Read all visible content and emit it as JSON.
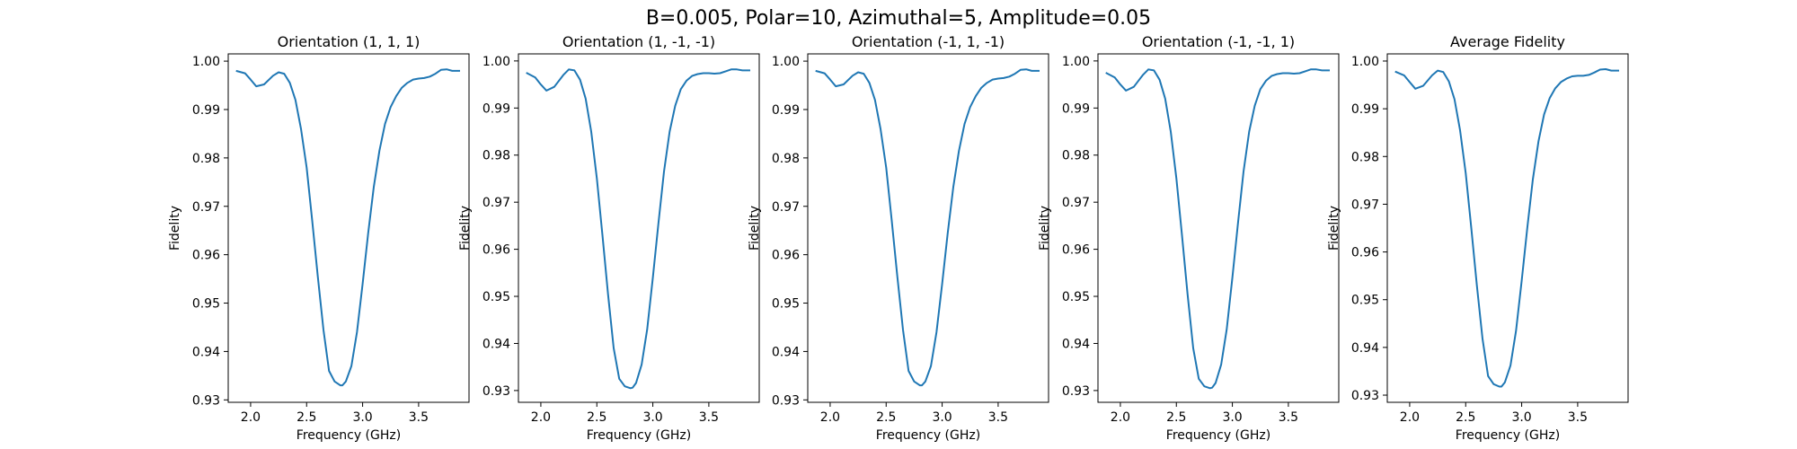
{
  "figure": {
    "suptitle": "B=0.005, Polar=10, Azimuthal=5, Amplitude=0.05"
  },
  "chart_data": [
    {
      "type": "line",
      "title": "Orientation (1, 1, 1)",
      "xlabel": "Frequency (GHz)",
      "ylabel": "Fidelity",
      "xlim": [
        1.8,
        3.95
      ],
      "ylim": [
        0.9295,
        1.0015
      ],
      "xticks": [
        "2.0",
        "2.5",
        "3.0",
        "3.5"
      ],
      "yticks": [
        "0.93",
        "0.94",
        "0.95",
        "0.96",
        "0.97",
        "0.98",
        "0.99",
        "1.00"
      ],
      "color": "#1f77b4",
      "series": [
        {
          "x": [
            1.87,
            1.95,
            2.0,
            2.05,
            2.12,
            2.2,
            2.25,
            2.3,
            2.35,
            2.4,
            2.45,
            2.5,
            2.55,
            2.6,
            2.65,
            2.7,
            2.75,
            2.8,
            2.82,
            2.85,
            2.9,
            2.95,
            3.0,
            3.05,
            3.1,
            3.15,
            3.2,
            3.25,
            3.3,
            3.35,
            3.4,
            3.45,
            3.5,
            3.55,
            3.6,
            3.65,
            3.7,
            3.75,
            3.8,
            3.85,
            3.87
          ],
          "y": [
            0.998,
            0.9975,
            0.9962,
            0.9948,
            0.9952,
            0.997,
            0.9977,
            0.9974,
            0.9955,
            0.992,
            0.986,
            0.978,
            0.967,
            0.9555,
            0.9445,
            0.936,
            0.9338,
            0.933,
            0.933,
            0.9338,
            0.937,
            0.944,
            0.954,
            0.9645,
            0.974,
            0.9815,
            0.987,
            0.9905,
            0.9928,
            0.9945,
            0.9955,
            0.9962,
            0.9964,
            0.9965,
            0.9968,
            0.9974,
            0.9982,
            0.9983,
            0.998,
            0.998,
            0.998
          ]
        }
      ]
    },
    {
      "type": "line",
      "title": "Orientation (1, -1, -1)",
      "xlabel": "Frequency (GHz)",
      "ylabel": "Fidelity",
      "xlim": [
        1.8,
        3.95
      ],
      "ylim": [
        0.9275,
        1.0015
      ],
      "xticks": [
        "2.0",
        "2.5",
        "3.0",
        "3.5"
      ],
      "yticks": [
        "0.93",
        "0.94",
        "0.95",
        "0.96",
        "0.97",
        "0.98",
        "0.99",
        "1.00"
      ],
      "color": "#1f77b4",
      "series": [
        {
          "x": [
            1.87,
            1.95,
            2.0,
            2.05,
            2.12,
            2.2,
            2.25,
            2.3,
            2.35,
            2.4,
            2.45,
            2.5,
            2.55,
            2.6,
            2.65,
            2.7,
            2.75,
            2.8,
            2.82,
            2.85,
            2.9,
            2.95,
            3.0,
            3.05,
            3.1,
            3.15,
            3.2,
            3.25,
            3.3,
            3.35,
            3.4,
            3.45,
            3.5,
            3.55,
            3.6,
            3.65,
            3.7,
            3.75,
            3.8,
            3.85,
            3.87
          ],
          "y": [
            0.9975,
            0.9965,
            0.995,
            0.9937,
            0.9945,
            0.997,
            0.9982,
            0.998,
            0.996,
            0.992,
            0.985,
            0.975,
            0.963,
            0.9505,
            0.939,
            0.9325,
            0.9309,
            0.9305,
            0.9306,
            0.9316,
            0.9355,
            0.943,
            0.954,
            0.9655,
            0.9765,
            0.985,
            0.9905,
            0.994,
            0.9958,
            0.9968,
            0.9972,
            0.9974,
            0.9974,
            0.9973,
            0.9974,
            0.9978,
            0.9982,
            0.9982,
            0.998,
            0.998,
            0.998
          ]
        }
      ]
    },
    {
      "type": "line",
      "title": "Orientation (-1, 1, -1)",
      "xlabel": "Frequency (GHz)",
      "ylabel": "Fidelity",
      "xlim": [
        1.8,
        3.95
      ],
      "ylim": [
        0.9295,
        1.0015
      ],
      "xticks": [
        "2.0",
        "2.5",
        "3.0",
        "3.5"
      ],
      "yticks": [
        "0.93",
        "0.94",
        "0.95",
        "0.96",
        "0.97",
        "0.98",
        "0.99",
        "1.00"
      ],
      "color": "#1f77b4",
      "series": [
        {
          "x": [
            1.87,
            1.95,
            2.0,
            2.05,
            2.12,
            2.2,
            2.25,
            2.3,
            2.35,
            2.4,
            2.45,
            2.5,
            2.55,
            2.6,
            2.65,
            2.7,
            2.75,
            2.8,
            2.82,
            2.85,
            2.9,
            2.95,
            3.0,
            3.05,
            3.1,
            3.15,
            3.2,
            3.25,
            3.3,
            3.35,
            3.4,
            3.45,
            3.5,
            3.55,
            3.6,
            3.65,
            3.7,
            3.75,
            3.8,
            3.85,
            3.87
          ],
          "y": [
            0.998,
            0.9975,
            0.9962,
            0.9948,
            0.9952,
            0.997,
            0.9977,
            0.9974,
            0.9955,
            0.992,
            0.986,
            0.978,
            0.967,
            0.9555,
            0.9445,
            0.936,
            0.9338,
            0.933,
            0.933,
            0.9338,
            0.937,
            0.944,
            0.954,
            0.9645,
            0.974,
            0.9815,
            0.987,
            0.9905,
            0.9928,
            0.9945,
            0.9955,
            0.9962,
            0.9964,
            0.9965,
            0.9968,
            0.9974,
            0.9982,
            0.9983,
            0.998,
            0.998,
            0.998
          ]
        }
      ]
    },
    {
      "type": "line",
      "title": "Orientation (-1, -1, 1)",
      "xlabel": "Frequency (GHz)",
      "ylabel": "Fidelity",
      "xlim": [
        1.8,
        3.95
      ],
      "ylim": [
        0.9275,
        1.0015
      ],
      "xticks": [
        "2.0",
        "2.5",
        "3.0",
        "3.5"
      ],
      "yticks": [
        "0.93",
        "0.94",
        "0.95",
        "0.96",
        "0.97",
        "0.98",
        "0.99",
        "1.00"
      ],
      "color": "#1f77b4",
      "series": [
        {
          "x": [
            1.87,
            1.95,
            2.0,
            2.05,
            2.12,
            2.2,
            2.25,
            2.3,
            2.35,
            2.4,
            2.45,
            2.5,
            2.55,
            2.6,
            2.65,
            2.7,
            2.75,
            2.8,
            2.82,
            2.85,
            2.9,
            2.95,
            3.0,
            3.05,
            3.1,
            3.15,
            3.2,
            3.25,
            3.3,
            3.35,
            3.4,
            3.45,
            3.5,
            3.55,
            3.6,
            3.65,
            3.7,
            3.75,
            3.8,
            3.85,
            3.87
          ],
          "y": [
            0.9975,
            0.9965,
            0.995,
            0.9937,
            0.9945,
            0.997,
            0.9982,
            0.998,
            0.996,
            0.992,
            0.985,
            0.975,
            0.963,
            0.9505,
            0.939,
            0.9325,
            0.9309,
            0.9305,
            0.9306,
            0.9316,
            0.9355,
            0.943,
            0.954,
            0.9655,
            0.9765,
            0.985,
            0.9905,
            0.994,
            0.9958,
            0.9968,
            0.9972,
            0.9974,
            0.9974,
            0.9973,
            0.9974,
            0.9978,
            0.9982,
            0.9982,
            0.998,
            0.998,
            0.998
          ]
        }
      ]
    },
    {
      "type": "line",
      "title": "Average Fidelity",
      "xlabel": "Frequency (GHz)",
      "ylabel": "Fidelity",
      "xlim": [
        1.8,
        3.95
      ],
      "ylim": [
        0.9285,
        1.0015
      ],
      "xticks": [
        "2.0",
        "2.5",
        "3.0",
        "3.5"
      ],
      "yticks": [
        "0.93",
        "0.94",
        "0.95",
        "0.96",
        "0.97",
        "0.98",
        "0.99",
        "1.00"
      ],
      "color": "#1f77b4",
      "series": [
        {
          "x": [
            1.87,
            1.95,
            2.0,
            2.05,
            2.12,
            2.2,
            2.25,
            2.3,
            2.35,
            2.4,
            2.45,
            2.5,
            2.55,
            2.6,
            2.65,
            2.7,
            2.75,
            2.8,
            2.82,
            2.85,
            2.9,
            2.95,
            3.0,
            3.05,
            3.1,
            3.15,
            3.2,
            3.25,
            3.3,
            3.35,
            3.4,
            3.45,
            3.5,
            3.55,
            3.6,
            3.65,
            3.7,
            3.75,
            3.8,
            3.85,
            3.87
          ],
          "y": [
            0.9978,
            0.997,
            0.9956,
            0.9942,
            0.9948,
            0.997,
            0.998,
            0.9977,
            0.9957,
            0.992,
            0.9855,
            0.9765,
            0.965,
            0.953,
            0.9418,
            0.934,
            0.9323,
            0.9318,
            0.9318,
            0.9327,
            0.9362,
            0.9435,
            0.954,
            0.965,
            0.9752,
            0.9832,
            0.9888,
            0.9922,
            0.9943,
            0.9956,
            0.9963,
            0.9968,
            0.9969,
            0.9969,
            0.9971,
            0.9976,
            0.9982,
            0.9983,
            0.998,
            0.998,
            0.998
          ]
        }
      ]
    }
  ]
}
